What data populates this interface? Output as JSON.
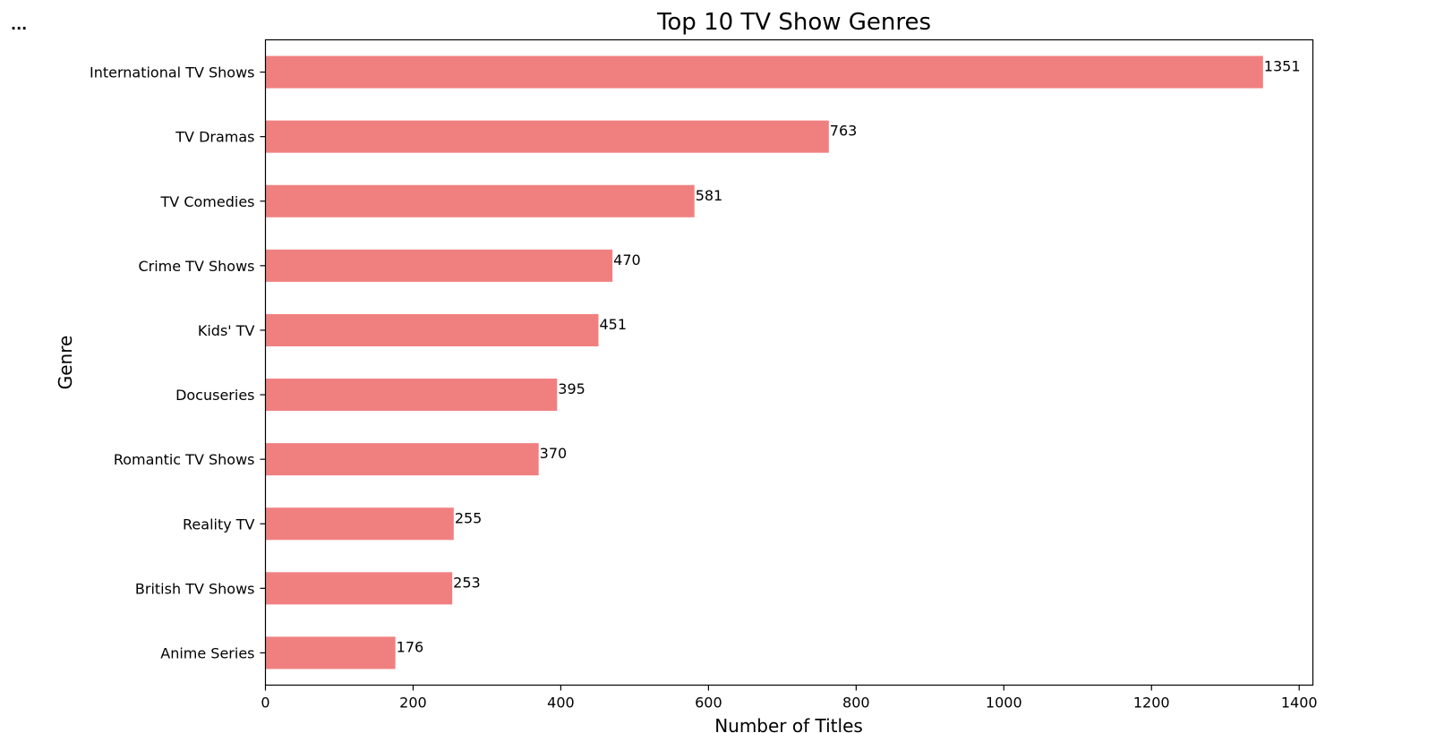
{
  "cell_indicator": "...",
  "chart_data": {
    "type": "bar",
    "orientation": "horizontal",
    "title": "Top 10 TV Show Genres",
    "xlabel": "Number of Titles",
    "ylabel": "Genre",
    "categories": [
      "International TV Shows",
      "TV Dramas",
      "TV Comedies",
      "Crime TV Shows",
      "Kids' TV",
      "Docuseries",
      "Romantic TV Shows",
      "Reality TV",
      "British TV Shows",
      "Anime Series"
    ],
    "values": [
      1351,
      763,
      581,
      470,
      451,
      395,
      370,
      255,
      253,
      176
    ],
    "data_labels": [
      "1351",
      "763",
      "581",
      "470",
      "451",
      "395",
      "370",
      "255",
      "253",
      "176"
    ],
    "xticks": [
      0,
      200,
      400,
      600,
      800,
      1000,
      1200,
      1400
    ],
    "xlim": [
      0,
      1418.55
    ],
    "bar_color": "#f08080",
    "grid": false,
    "legend": "none"
  }
}
